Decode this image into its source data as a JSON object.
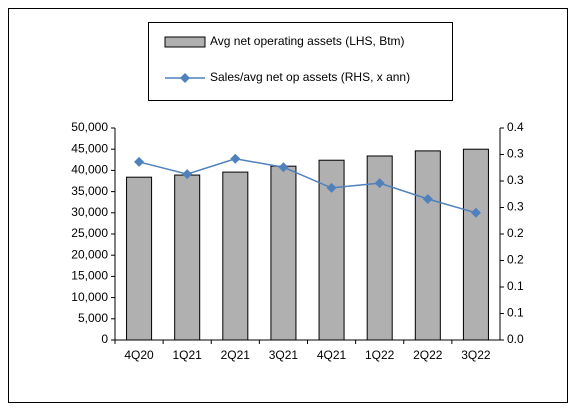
{
  "chart_data": {
    "type": "bar-line",
    "categories": [
      "4Q20",
      "1Q21",
      "2Q21",
      "3Q21",
      "4Q21",
      "1Q22",
      "2Q22",
      "3Q22"
    ],
    "series": [
      {
        "name": "Avg net operating assets (LHS, Btm)",
        "type": "bar",
        "color": "#b0b0b0",
        "values": [
          38400,
          38900,
          39600,
          41000,
          42400,
          43400,
          44600,
          45000
        ]
      },
      {
        "name": "Sales/avg net op assets (RHS, x ann)",
        "type": "line",
        "axis": "y2",
        "color": "#4f81bd",
        "values": [
          0.336,
          0.313,
          0.342,
          0.326,
          0.287,
          0.296,
          0.266,
          0.24
        ]
      }
    ],
    "ylim": [
      0,
      50000
    ],
    "yticks": [
      0,
      {
        "value": 5000,
        "label": "5,000"
      },
      {
        "value": 10000,
        "label": "10,000"
      },
      {
        "value": 15000,
        "label": "15,000"
      },
      {
        "value": 20000,
        "label": "20,000"
      },
      {
        "value": 25000,
        "label": "25,000"
      },
      {
        "value": 30000,
        "label": "30,000"
      },
      {
        "value": 35000,
        "label": "35,000"
      },
      {
        "value": 40000,
        "label": "40,000"
      },
      {
        "value": 45000,
        "label": "45,000"
      },
      {
        "value": 50000,
        "label": "50,000"
      }
    ],
    "y2lim": [
      0,
      0.4
    ],
    "y2ticks": [
      {
        "value": 0,
        "label": "0.0"
      },
      {
        "value": 0.05,
        "label": "0.1"
      },
      0.1,
      {
        "value": 0.15,
        "label": "0.2"
      },
      0.2,
      {
        "value": 0.25,
        "label": "0.3"
      },
      0.3,
      {
        "value": 0.35,
        "label": "0.3"
      },
      0.4
    ],
    "legend": "top"
  }
}
